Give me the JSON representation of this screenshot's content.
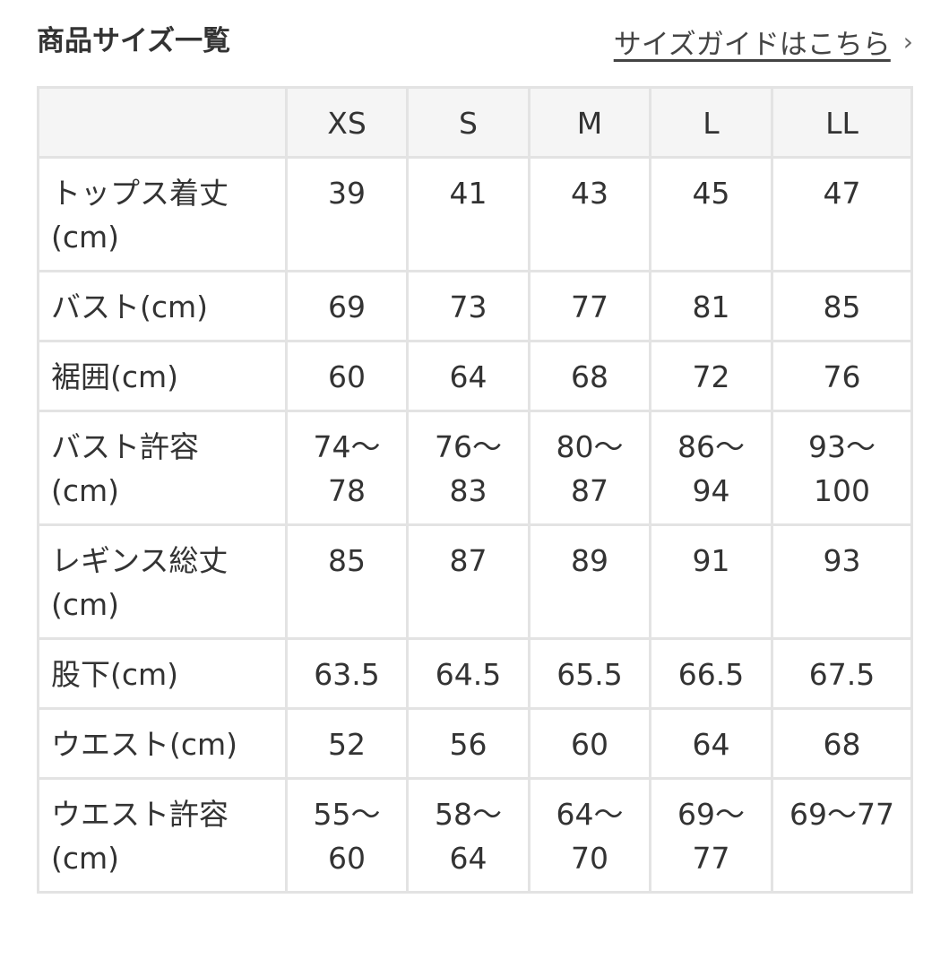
{
  "title": "商品サイズ一覧",
  "guide_link": "サイズガイドはこちら",
  "guide_chevron": "›",
  "table": {
    "columns": [
      "",
      "XS",
      "S",
      "M",
      "L",
      "LL"
    ],
    "rows": [
      {
        "label": "トップス着丈\n(cm)",
        "values": [
          "39",
          "41",
          "43",
          "45",
          "47"
        ]
      },
      {
        "label": "バスト(cm)",
        "values": [
          "69",
          "73",
          "77",
          "81",
          "85"
        ]
      },
      {
        "label": "裾囲(cm)",
        "values": [
          "60",
          "64",
          "68",
          "72",
          "76"
        ]
      },
      {
        "label": "バスト許容\n(cm)",
        "values": [
          "74〜\n78",
          "76〜\n83",
          "80〜\n87",
          "86〜\n94",
          "93〜\n100"
        ]
      },
      {
        "label": "レギンス総丈\n(cm)",
        "values": [
          "85",
          "87",
          "89",
          "91",
          "93"
        ]
      },
      {
        "label": "股下(cm)",
        "values": [
          "63.5",
          "64.5",
          "65.5",
          "66.5",
          "67.5"
        ]
      },
      {
        "label": "ウエスト(cm)",
        "values": [
          "52",
          "56",
          "60",
          "64",
          "68"
        ]
      },
      {
        "label": "ウエスト許容\n(cm)",
        "values": [
          "55〜\n60",
          "58〜\n64",
          "64〜\n70",
          "69〜\n77",
          "69〜77"
        ]
      }
    ]
  }
}
